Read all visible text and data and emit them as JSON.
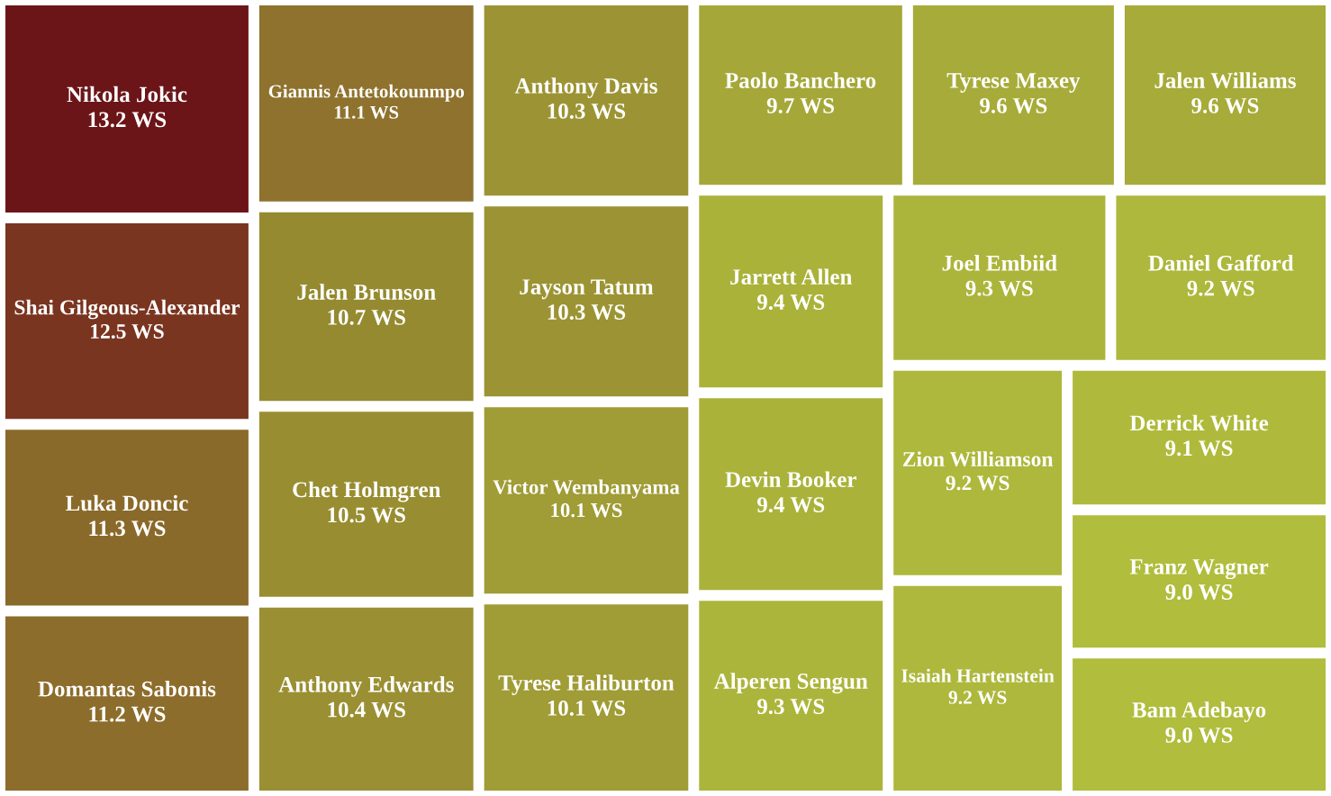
{
  "chart_data": {
    "type": "other",
    "categories": [
      "Nikola Jokic",
      "Shai Gilgeous-Alexander",
      "Luka Doncic",
      "Domantas Sabonis",
      "Giannis Antetokounmpo",
      "Jalen Brunson",
      "Chet Holmgren",
      "Anthony Edwards",
      "Anthony Davis",
      "Jayson Tatum",
      "Victor Wembanyama",
      "Tyrese Haliburton",
      "Paolo Banchero",
      "Tyrese Maxey",
      "Jalen Williams",
      "Jarrett Allen",
      "Devin Booker",
      "Alperen Sengun",
      "Joel Embiid",
      "Daniel Gafford",
      "Zion Williamson",
      "Isaiah Hartenstein",
      "Derrick White",
      "Franz Wagner",
      "Bam Adebayo"
    ],
    "values": [
      13.2,
      12.5,
      11.3,
      11.2,
      11.1,
      10.7,
      10.5,
      10.4,
      10.3,
      10.3,
      10.1,
      10.1,
      9.7,
      9.6,
      9.6,
      9.4,
      9.4,
      9.3,
      9.3,
      9.2,
      9.2,
      9.2,
      9.1,
      9.0,
      9.0
    ],
    "value_labels": [
      "13.2 WS",
      "12.5 WS",
      "11.3 WS",
      "11.2 WS",
      "11.1 WS",
      "10.7 WS",
      "10.5 WS",
      "10.4 WS",
      "10.3 WS",
      "10.3 WS",
      "10.1 WS",
      "10.1 WS",
      "9.7 WS",
      "9.6 WS",
      "9.6 WS",
      "9.4 WS",
      "9.4 WS",
      "9.3 WS",
      "9.3 WS",
      "9.2 WS",
      "9.2 WS",
      "9.2 WS",
      "9.1 WS",
      "9.0 WS",
      "9.0 WS"
    ],
    "colors": [
      "#6b1518",
      "#7a3520",
      "#8a6a2a",
      "#8c6d2b",
      "#8e722d",
      "#958a30",
      "#988d31",
      "#9a9033",
      "#9c9434",
      "#9c9434",
      "#a09c36",
      "#a09c36",
      "#a5a838",
      "#a7ab39",
      "#a7ab39",
      "#aab23a",
      "#aab23a",
      "#acb53b",
      "#acb53b",
      "#adb83c",
      "#adb83c",
      "#adb83c",
      "#afba3c",
      "#b0bd3d",
      "#b0bd3d"
    ]
  }
}
